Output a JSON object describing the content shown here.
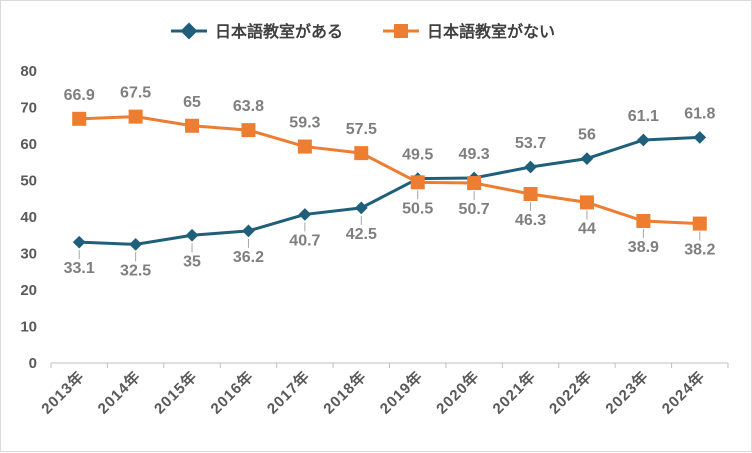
{
  "chart_data": {
    "type": "line",
    "categories": [
      "2013年",
      "2014年",
      "2015年",
      "2016年",
      "2017年",
      "2018年",
      "2019年",
      "2020年",
      "2021年",
      "2022年",
      "2023年",
      "2024年"
    ],
    "series": [
      {
        "name": "日本語教室がある",
        "color": "#1f5f7a",
        "marker": "diamond",
        "values": [
          33.1,
          32.5,
          35,
          36.2,
          40.7,
          42.5,
          50.5,
          50.7,
          53.7,
          56,
          61.1,
          61.8
        ],
        "labels": [
          "33.1",
          "32.5",
          "35",
          "36.2",
          "40.7",
          "42.5",
          "50.5",
          "50.7",
          "53.7",
          "56",
          "61.1",
          "61.8"
        ]
      },
      {
        "name": "日本語教室がない",
        "color": "#ed7d31",
        "marker": "square",
        "values": [
          66.9,
          67.5,
          65,
          63.8,
          59.3,
          57.5,
          49.5,
          49.3,
          46.3,
          44,
          38.9,
          38.2
        ],
        "labels": [
          "66.9",
          "67.5",
          "65",
          "63.8",
          "59.3",
          "57.5",
          "49.5",
          "49.3",
          "46.3",
          "44",
          "38.9",
          "38.2"
        ]
      }
    ],
    "ylim": [
      0,
      80
    ],
    "yticks": [
      "0",
      "10",
      "20",
      "30",
      "40",
      "50",
      "60",
      "70",
      "80"
    ],
    "legend": "top-center",
    "grid": false
  }
}
